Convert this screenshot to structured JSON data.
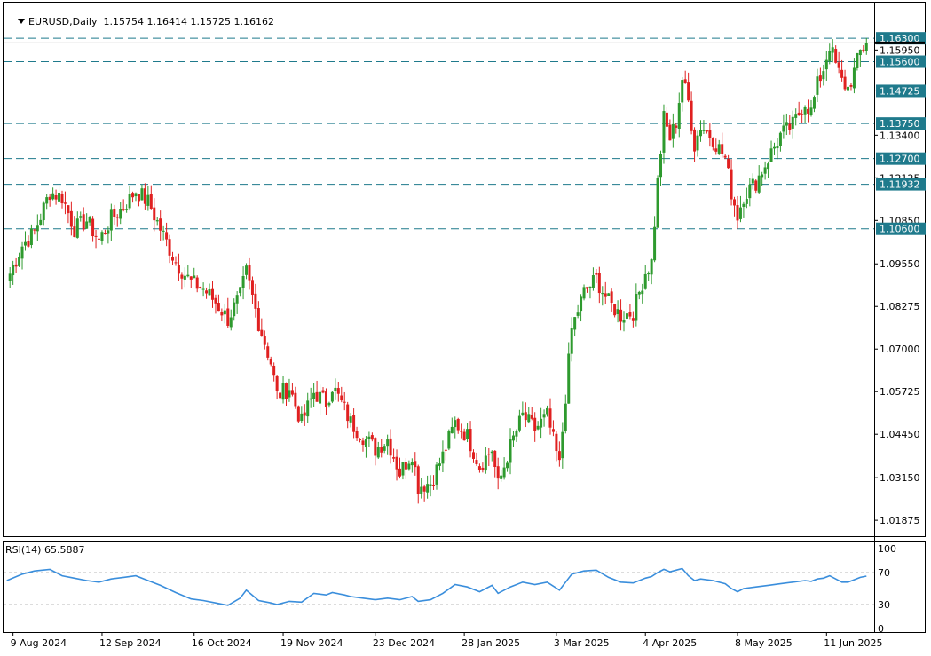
{
  "header": {
    "symbol": "EURUSD,Daily",
    "open": "1.15754",
    "high": "1.16414",
    "low": "1.15725",
    "close": "1.16162"
  },
  "rsi_header": {
    "label": "RSI(14)",
    "value": "65.5887"
  },
  "chart_data": [
    {
      "type": "candlestick",
      "symbol": "EURUSD",
      "timeframe": "Daily",
      "ylim": [
        1.014,
        1.1665
      ],
      "y_ticks": [
        "1.01875",
        "1.03150",
        "1.04450",
        "1.05725",
        "1.07000",
        "1.08275",
        "1.09550",
        "1.10850",
        "1.12125",
        "1.13400",
        "1.14725",
        "1.15950"
      ],
      "x_ticks": [
        "9 Aug 2024",
        "12 Sep 2024",
        "16 Oct 2024",
        "19 Nov 2024",
        "23 Dec 2024",
        "28 Jan 2025",
        "3 Mar 2025",
        "4 Apr 2025",
        "8 May 2025",
        "11 Jun 2025"
      ],
      "horizontal_levels": [
        "1.16300",
        "1.15600",
        "1.14725",
        "1.13750",
        "1.12700",
        "1.11932",
        "1.10600"
      ],
      "current_price": "1.16162",
      "level_color": "#1f7a8c",
      "up_color": "#2e9a2e",
      "down_color": "#e02020",
      "close_path": [
        [
          0,
          1.0905
        ],
        [
          5,
          1.101
        ],
        [
          9,
          1.105
        ],
        [
          14,
          1.117
        ],
        [
          18,
          1.1155
        ],
        [
          22,
          1.106
        ],
        [
          26,
          1.1085
        ],
        [
          30,
          1.1025
        ],
        [
          34,
          1.109
        ],
        [
          38,
          1.1125
        ],
        [
          42,
          1.1175
        ],
        [
          46,
          1.114
        ],
        [
          50,
          1.106
        ],
        [
          55,
          1.096
        ],
        [
          60,
          1.09
        ],
        [
          64,
          1.088
        ],
        [
          68,
          1.084
        ],
        [
          72,
          1.079
        ],
        [
          76,
          1.086
        ],
        [
          78,
          1.093
        ],
        [
          82,
          1.078
        ],
        [
          86,
          1.066
        ],
        [
          88,
          1.056
        ],
        [
          92,
          1.0585
        ],
        [
          96,
          1.048
        ],
        [
          100,
          1.057
        ],
        [
          104,
          1.054
        ],
        [
          106,
          1.059
        ],
        [
          110,
          1.052
        ],
        [
          112,
          1.048
        ],
        [
          116,
          1.044
        ],
        [
          120,
          1.04
        ],
        [
          124,
          1.043
        ],
        [
          128,
          1.033
        ],
        [
          132,
          1.039
        ],
        [
          134,
          1.029
        ],
        [
          138,
          1.03
        ],
        [
          142,
          1.038
        ],
        [
          146,
          1.048
        ],
        [
          150,
          1.044
        ],
        [
          154,
          1.035
        ],
        [
          158,
          1.04
        ],
        [
          160,
          1.029
        ],
        [
          164,
          1.041
        ],
        [
          168,
          1.05
        ],
        [
          172,
          1.046
        ],
        [
          176,
          1.05
        ],
        [
          180,
          1.035
        ],
        [
          182,
          1.056
        ],
        [
          184,
          1.076
        ],
        [
          188,
          1.087
        ],
        [
          192,
          1.091
        ],
        [
          196,
          1.084
        ],
        [
          200,
          1.08
        ],
        [
          204,
          1.081
        ],
        [
          208,
          1.093
        ],
        [
          210,
          1.096
        ],
        [
          212,
          1.12
        ],
        [
          214,
          1.139
        ],
        [
          216,
          1.133
        ],
        [
          218,
          1.138
        ],
        [
          220,
          1.151
        ],
        [
          222,
          1.144
        ],
        [
          224,
          1.131
        ],
        [
          226,
          1.137
        ],
        [
          230,
          1.133
        ],
        [
          234,
          1.127
        ],
        [
          236,
          1.117
        ],
        [
          238,
          1.11
        ],
        [
          240,
          1.116
        ],
        [
          244,
          1.12
        ],
        [
          248,
          1.127
        ],
        [
          252,
          1.134
        ],
        [
          256,
          1.137
        ],
        [
          260,
          1.144
        ],
        [
          262,
          1.141
        ],
        [
          264,
          1.149
        ],
        [
          266,
          1.154
        ],
        [
          268,
          1.161
        ],
        [
          270,
          1.155
        ],
        [
          272,
          1.15
        ],
        [
          274,
          1.148
        ],
        [
          276,
          1.153
        ],
        [
          278,
          1.159
        ],
        [
          280,
          1.1616
        ]
      ]
    },
    {
      "type": "line",
      "indicator": "RSI(14)",
      "ylim": [
        0,
        100
      ],
      "y_ticks": [
        "100",
        "70",
        "30",
        "0"
      ],
      "levels": [
        70,
        30
      ],
      "line_color": "#3a8edc",
      "points": [
        [
          0,
          60
        ],
        [
          5,
          68
        ],
        [
          9,
          72
        ],
        [
          14,
          74
        ],
        [
          18,
          66
        ],
        [
          22,
          63
        ],
        [
          26,
          60
        ],
        [
          30,
          58
        ],
        [
          34,
          62
        ],
        [
          38,
          64
        ],
        [
          42,
          66
        ],
        [
          46,
          60
        ],
        [
          50,
          54
        ],
        [
          55,
          45
        ],
        [
          60,
          37
        ],
        [
          64,
          35
        ],
        [
          68,
          32
        ],
        [
          72,
          29
        ],
        [
          76,
          38
        ],
        [
          78,
          48
        ],
        [
          82,
          35
        ],
        [
          86,
          32
        ],
        [
          88,
          30
        ],
        [
          92,
          34
        ],
        [
          96,
          33
        ],
        [
          100,
          44
        ],
        [
          104,
          42
        ],
        [
          106,
          45
        ],
        [
          110,
          42
        ],
        [
          112,
          40
        ],
        [
          116,
          38
        ],
        [
          120,
          36
        ],
        [
          124,
          38
        ],
        [
          128,
          36
        ],
        [
          132,
          40
        ],
        [
          134,
          34
        ],
        [
          138,
          36
        ],
        [
          142,
          44
        ],
        [
          146,
          55
        ],
        [
          150,
          52
        ],
        [
          154,
          46
        ],
        [
          158,
          54
        ],
        [
          160,
          44
        ],
        [
          164,
          52
        ],
        [
          168,
          58
        ],
        [
          172,
          55
        ],
        [
          176,
          58
        ],
        [
          180,
          48
        ],
        [
          182,
          58
        ],
        [
          184,
          68
        ],
        [
          188,
          72
        ],
        [
          192,
          73
        ],
        [
          196,
          64
        ],
        [
          200,
          58
        ],
        [
          204,
          57
        ],
        [
          208,
          63
        ],
        [
          210,
          65
        ],
        [
          212,
          70
        ],
        [
          214,
          74
        ],
        [
          216,
          71
        ],
        [
          218,
          73
        ],
        [
          220,
          75
        ],
        [
          222,
          66
        ],
        [
          224,
          60
        ],
        [
          226,
          62
        ],
        [
          230,
          60
        ],
        [
          234,
          56
        ],
        [
          236,
          50
        ],
        [
          238,
          46
        ],
        [
          240,
          50
        ],
        [
          244,
          52
        ],
        [
          248,
          54
        ],
        [
          252,
          56
        ],
        [
          256,
          58
        ],
        [
          260,
          60
        ],
        [
          262,
          59
        ],
        [
          264,
          62
        ],
        [
          266,
          63
        ],
        [
          268,
          66
        ],
        [
          270,
          62
        ],
        [
          272,
          58
        ],
        [
          274,
          58
        ],
        [
          276,
          61
        ],
        [
          278,
          64
        ],
        [
          280,
          65.59
        ]
      ]
    }
  ]
}
